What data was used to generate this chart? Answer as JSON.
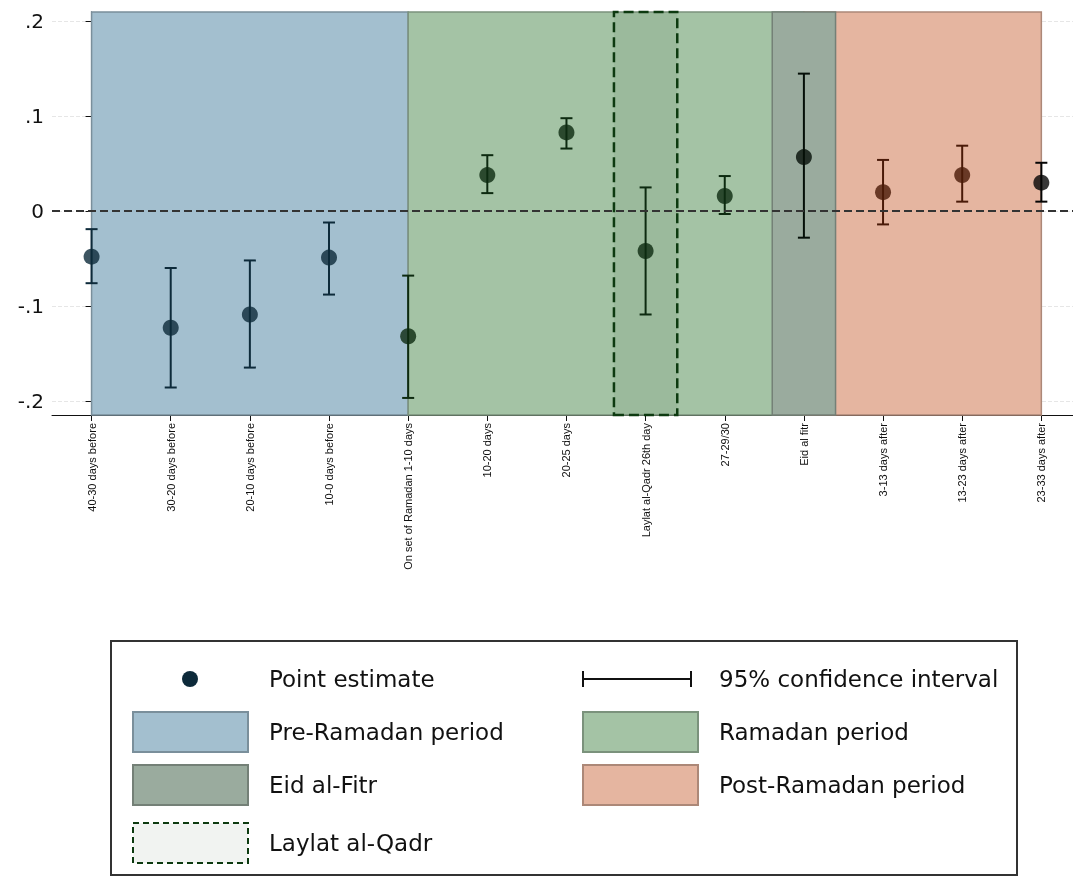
{
  "chart_data": {
    "type": "scatter",
    "categories": [
      "40-30 days before",
      "30-20 days before",
      "20-10 days before",
      "10-0 days before",
      "On set of Ramadan 1-10 days",
      "10-20 days",
      "20-25 days",
      "Laylat al-Qadr 26th day",
      "27-29/30",
      "Eid al fitr",
      "3-13 days after",
      "13-23 days after",
      "23-33 days after"
    ],
    "series": [
      {
        "name": "Point estimate",
        "values": [
          -0.048,
          -0.123,
          -0.109,
          -0.049,
          -0.132,
          0.038,
          0.083,
          -0.042,
          0.016,
          0.057,
          0.02,
          0.038,
          0.03
        ],
        "errors": [
          [
            -0.076,
            -0.019
          ],
          [
            -0.186,
            -0.06
          ],
          [
            -0.165,
            -0.052
          ],
          [
            -0.088,
            -0.012
          ],
          [
            -0.197,
            -0.068
          ],
          [
            0.019,
            0.059
          ],
          [
            0.066,
            0.098
          ],
          [
            -0.109,
            0.025
          ],
          [
            -0.003,
            0.037
          ],
          [
            -0.028,
            0.145
          ],
          [
            -0.014,
            0.054
          ],
          [
            0.01,
            0.069
          ],
          [
            0.01,
            0.051
          ]
        ],
        "colors": [
          "#0d2a3a",
          "#0d2a3a",
          "#0d2a3a",
          "#0d2a3a",
          "#0d2a10",
          "#0d2a10",
          "#0d2a10",
          "#0d2a10",
          "#0d2a10",
          "#050f08",
          "#4a1a08",
          "#4a1a08",
          "#050505"
        ]
      }
    ],
    "marker": "circle",
    "ylim": [
      -0.215,
      0.21
    ],
    "yticks": [
      {
        "value": -0.2,
        "label": "-.2"
      },
      {
        "value": -0.1,
        "label": "-.1"
      },
      0,
      {
        "value": 0.1,
        "label": ".1"
      },
      {
        "value": 0.2,
        "label": ".2"
      }
    ],
    "grid": "y",
    "ref_lines": [
      {
        "axis": "y",
        "value": 0,
        "color": "#333333",
        "line_style": "dashed"
      }
    ],
    "bands": [
      {
        "axis": "x",
        "from": "40-30 days before",
        "to": "On set of Ramadan 1-10 days",
        "label": "Pre-Ramadan period",
        "color": "#a3bfcf"
      },
      {
        "axis": "x",
        "from": "On set of Ramadan 1-10 days",
        "to": "Eid al fitr",
        "label": "Ramadan period",
        "color": "#a4c3a5"
      },
      {
        "axis": "x",
        "from": "Eid al fitr",
        "to": "Eid al fitr",
        "label": "Eid al-Fitr",
        "color": "#9aab9e"
      },
      {
        "axis": "x",
        "from": "Eid al fitr",
        "to": "23-33 days after",
        "label": "Post-Ramadan period",
        "color": "#e5b5a0"
      },
      {
        "axis": "x",
        "from": "Laylat al-Qadr 26th day",
        "to": "Laylat al-Qadr 26th day",
        "label": "Laylat al-Qadr",
        "color": "#0d3a10"
      }
    ],
    "annotations": [
      "95% confidence interval"
    ],
    "legend": "bottom"
  }
}
